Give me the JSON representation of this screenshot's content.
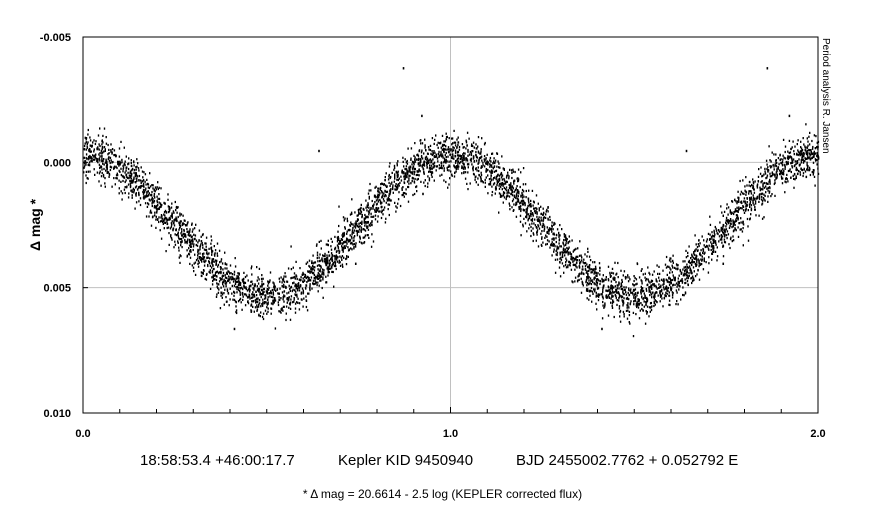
{
  "chart_data": {
    "type": "scatter",
    "title": "",
    "xlabel": "",
    "ylabel": "Δ mag *",
    "xlim": [
      0.0,
      2.0
    ],
    "ylim": [
      -0.005,
      0.01
    ],
    "y_inverted": true,
    "x_tick_labels": [
      "0.0",
      "1.0",
      "2.0"
    ],
    "x_major_ticks": [
      0.0,
      1.0,
      2.0
    ],
    "x_minor_step": 0.1,
    "y_tick_labels": [
      "-0.005",
      "0.000",
      "0.005",
      "0.010"
    ],
    "y_ticks": [
      -0.005,
      0.0,
      0.005,
      0.01
    ],
    "grid": true,
    "marker_color": "#000000",
    "series": [
      {
        "model": "sinusoid_with_scatter",
        "mean_mag": 0.0025,
        "semi_amplitude_mag": 0.0028,
        "period_phase": 1.0,
        "maximum_brightness_phase": 0.0,
        "scatter_mag": 0.0006,
        "approx_points": 4800,
        "phase_range": [
          0.0,
          2.0
        ]
      }
    ],
    "outliers": [
      {
        "x": 0.87,
        "y": -0.0038
      },
      {
        "x": 1.86,
        "y": -0.0038
      },
      {
        "x": 0.92,
        "y": -0.0019
      },
      {
        "x": 1.92,
        "y": -0.0019
      },
      {
        "x": 0.64,
        "y": -0.0005
      },
      {
        "x": 1.64,
        "y": -0.0005
      },
      {
        "x": 0.32,
        "y": 0.0031
      },
      {
        "x": 0.41,
        "y": 0.0066
      },
      {
        "x": 1.41,
        "y": 0.0066
      },
      {
        "x": 0.74,
        "y": 0.004
      },
      {
        "x": 1.74,
        "y": 0.004
      }
    ]
  },
  "side_note": "Period analysis  R. Jansen",
  "caption": {
    "coords": "18:58:53.4 +46:00:17.7",
    "object": "Kepler KID 9450940",
    "ephemeris": "BJD 2455002.7762 + 0.052792 E"
  },
  "footnote": "* Δ mag = 20.6614 - 2.5 log (KEPLER corrected flux)"
}
